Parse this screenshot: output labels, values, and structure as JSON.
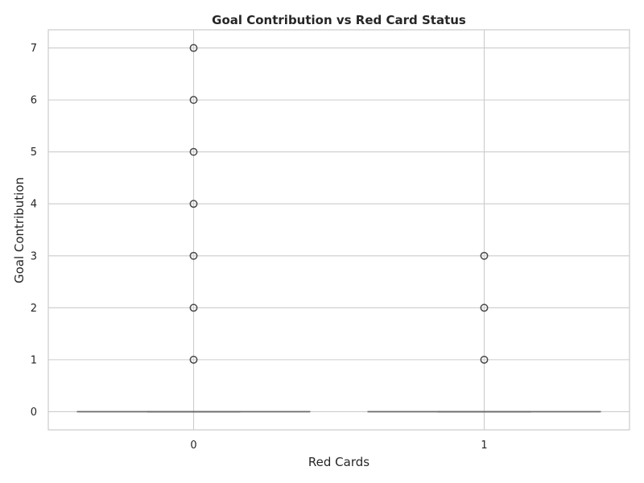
{
  "chart_data": {
    "type": "box",
    "title": "Goal Contribution vs Red Card Status",
    "xlabel": "Red Cards",
    "ylabel": "Goal Contribution",
    "categories": [
      "0",
      "1"
    ],
    "ylim": [
      -0.35,
      7.35
    ],
    "yticks": [
      0,
      1,
      2,
      3,
      4,
      5,
      6,
      7
    ],
    "grid": true,
    "boxes": [
      {
        "category": "0",
        "min": 0,
        "q1": 0,
        "median": 0,
        "q3": 0,
        "max": 0,
        "outliers": [
          1,
          2,
          3,
          4,
          5,
          6,
          7
        ]
      },
      {
        "category": "1",
        "min": 0,
        "q1": 0,
        "median": 0,
        "q3": 0,
        "max": 0,
        "outliers": [
          1,
          2,
          3
        ]
      }
    ],
    "colors": {
      "box_line": "#6b6b6b",
      "outlier_edge": "#4a4a4a",
      "grid": "#cccccc",
      "spine": "#cccccc"
    }
  }
}
